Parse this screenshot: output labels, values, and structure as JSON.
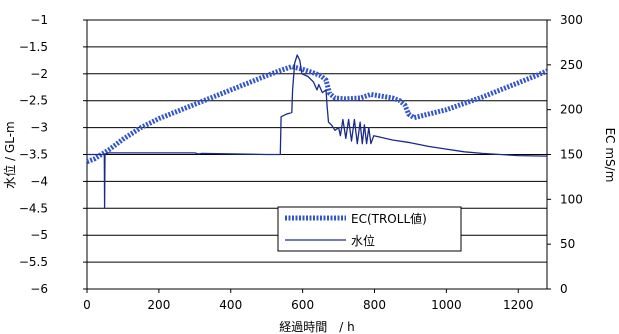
{
  "chart_data": {
    "type": "line",
    "title": "",
    "xlabel": "経過時間　/ h",
    "ylabel_left": "水位 / GL-m",
    "ylabel_right": "EC mS/m",
    "xlim": [
      0,
      1280
    ],
    "ylim_left": [
      -6,
      -1
    ],
    "ylim_right": [
      0,
      300
    ],
    "x_ticks": [
      "0",
      "200",
      "400",
      "600",
      "800",
      "1000",
      "1200"
    ],
    "y_left_ticks": [
      "-1",
      "-1.5",
      "-2",
      "-2.5",
      "-3",
      "-3.5",
      "-4",
      "-4.5",
      "-5",
      "-5.5",
      "-6"
    ],
    "y_right_ticks": [
      "300",
      "250",
      "200",
      "150",
      "100",
      "50",
      "0"
    ],
    "grid": "horizontal",
    "legend_position": "lower-center",
    "series": [
      {
        "name": "EC(TROLL値)",
        "axis": "right",
        "color": "#3355cc",
        "style": "thick-dotted",
        "points": [
          [
            0,
            142
          ],
          [
            20,
            145
          ],
          [
            40,
            150
          ],
          [
            60,
            155
          ],
          [
            80,
            161
          ],
          [
            100,
            167
          ],
          [
            150,
            180
          ],
          [
            200,
            190
          ],
          [
            250,
            198
          ],
          [
            300,
            206
          ],
          [
            350,
            214
          ],
          [
            400,
            222
          ],
          [
            450,
            230
          ],
          [
            500,
            238
          ],
          [
            540,
            244
          ],
          [
            570,
            248
          ],
          [
            600,
            245
          ],
          [
            630,
            241
          ],
          [
            650,
            238
          ],
          [
            665,
            233
          ],
          [
            675,
            218
          ],
          [
            690,
            213
          ],
          [
            720,
            212
          ],
          [
            760,
            213
          ],
          [
            790,
            217
          ],
          [
            820,
            215
          ],
          [
            850,
            213
          ],
          [
            870,
            210
          ],
          [
            885,
            205
          ],
          [
            895,
            195
          ],
          [
            910,
            191
          ],
          [
            950,
            195
          ],
          [
            1000,
            200
          ],
          [
            1050,
            207
          ],
          [
            1100,
            214
          ],
          [
            1150,
            222
          ],
          [
            1200,
            230
          ],
          [
            1250,
            238
          ],
          [
            1280,
            243
          ]
        ]
      },
      {
        "name": "水位",
        "axis": "left",
        "color": "#1a2a8a",
        "style": "line",
        "points": [
          [
            0,
            -3.5
          ],
          [
            48,
            -3.5
          ],
          [
            49,
            -4.5
          ],
          [
            50,
            -3.49
          ],
          [
            60,
            -3.47
          ],
          [
            300,
            -3.47
          ],
          [
            310,
            -3.49
          ],
          [
            320,
            -3.48
          ],
          [
            500,
            -3.5
          ],
          [
            538,
            -3.5
          ],
          [
            540,
            -2.8
          ],
          [
            555,
            -2.75
          ],
          [
            570,
            -2.72
          ],
          [
            572,
            -2.3
          ],
          [
            578,
            -1.8
          ],
          [
            585,
            -1.65
          ],
          [
            592,
            -1.75
          ],
          [
            598,
            -2.0
          ],
          [
            615,
            -2.05
          ],
          [
            630,
            -2.15
          ],
          [
            640,
            -2.3
          ],
          [
            645,
            -2.2
          ],
          [
            655,
            -2.35
          ],
          [
            665,
            -2.3
          ],
          [
            668,
            -2.6
          ],
          [
            672,
            -2.9
          ],
          [
            680,
            -2.95
          ],
          [
            690,
            -3.05
          ],
          [
            700,
            -3.0
          ],
          [
            705,
            -3.15
          ],
          [
            712,
            -2.85
          ],
          [
            720,
            -3.2
          ],
          [
            728,
            -2.85
          ],
          [
            736,
            -3.25
          ],
          [
            744,
            -2.85
          ],
          [
            752,
            -3.3
          ],
          [
            760,
            -2.9
          ],
          [
            766,
            -3.3
          ],
          [
            772,
            -2.95
          ],
          [
            778,
            -3.3
          ],
          [
            784,
            -3.0
          ],
          [
            790,
            -3.3
          ],
          [
            798,
            -3.15
          ],
          [
            850,
            -3.23
          ],
          [
            900,
            -3.28
          ],
          [
            950,
            -3.35
          ],
          [
            1000,
            -3.4
          ],
          [
            1050,
            -3.45
          ],
          [
            1100,
            -3.48
          ],
          [
            1150,
            -3.5
          ],
          [
            1200,
            -3.52
          ],
          [
            1280,
            -3.53
          ]
        ]
      }
    ]
  }
}
